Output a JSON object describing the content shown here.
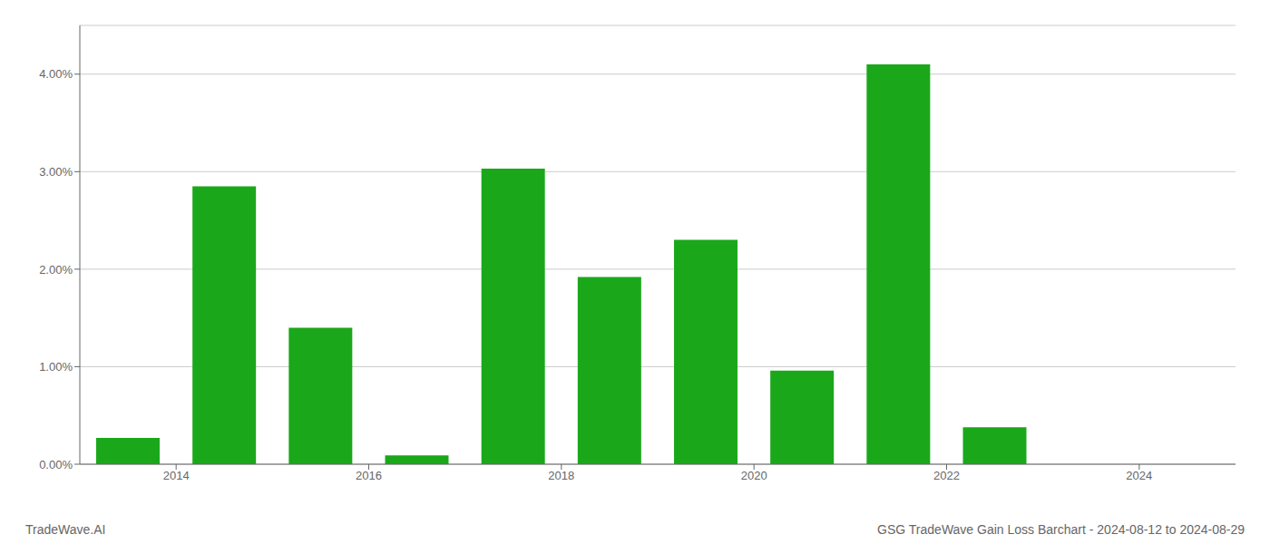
{
  "chart_data": {
    "type": "bar",
    "title": "GSG TradeWave Gain Loss Barchart - 2024-08-12 to 2024-08-29",
    "annotations": [
      "TradeWave.AI"
    ],
    "x": [
      2013.5,
      2014.5,
      2015.5,
      2016.5,
      2017.5,
      2018.5,
      2019.5,
      2020.5,
      2021.5,
      2022.5,
      2023.5
    ],
    "values": [
      0.0027,
      0.0285,
      0.014,
      0.0009,
      0.0303,
      0.0192,
      0.023,
      0.0096,
      0.041,
      0.0038,
      0.0
    ],
    "color": "#1aa81a",
    "xlim": [
      2013.0,
      2025.0
    ],
    "xticks": [
      2014,
      2016,
      2018,
      2020,
      2022,
      2024
    ],
    "ylim": [
      0,
      0.045
    ],
    "yticks": [
      {
        "value": 0.0,
        "label": "0.00%"
      },
      {
        "value": 0.01,
        "label": "1.00%"
      },
      {
        "value": 0.02,
        "label": "2.00%"
      },
      {
        "value": 0.03,
        "label": "3.00%"
      },
      {
        "value": 0.04,
        "label": "4.00%"
      }
    ],
    "grid": true
  }
}
